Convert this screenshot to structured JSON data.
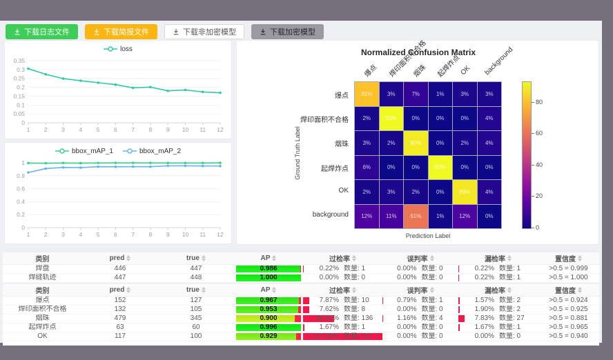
{
  "toolbar": {
    "buttons": [
      {
        "id": "download-log",
        "label": "下载日志文件",
        "variant": "green"
      },
      {
        "id": "download-brief",
        "label": "下载简报文件",
        "variant": "orange"
      },
      {
        "id": "download-unencrypted-model",
        "label": "下载非加密模型",
        "variant": "white"
      },
      {
        "id": "download-encrypted-model",
        "label": "下载加密模型",
        "variant": "gray"
      }
    ]
  },
  "chart_data": [
    {
      "type": "line",
      "title": "",
      "x": [
        1,
        2,
        3,
        4,
        5,
        6,
        7,
        8,
        9,
        10,
        11,
        12
      ],
      "series": [
        {
          "name": "loss",
          "color": "#2fc9a2",
          "values": [
            0.305,
            0.273,
            0.249,
            0.237,
            0.226,
            0.215,
            0.197,
            0.201,
            0.18,
            0.185,
            0.174,
            0.169
          ]
        }
      ],
      "ylim": [
        0,
        0.35
      ],
      "yticks": [
        0,
        0.05,
        0.1,
        0.15,
        0.2,
        0.25,
        0.3,
        0.35
      ],
      "grid": true,
      "legend_position": "top"
    },
    {
      "type": "line",
      "title": "",
      "x": [
        1,
        2,
        3,
        4,
        5,
        6,
        7,
        8,
        9,
        10,
        11,
        12
      ],
      "series": [
        {
          "name": "bbox_mAP_1",
          "color": "#38cf8f",
          "values": [
            0.995,
            0.993,
            0.997,
            0.994,
            0.997,
            0.998,
            0.998,
            0.998,
            0.997,
            0.997,
            0.997,
            0.998
          ]
        },
        {
          "name": "bbox_mAP_2",
          "color": "#66b3f0",
          "values": [
            0.85,
            0.91,
            0.928,
            0.925,
            0.94,
            0.938,
            0.94,
            0.94,
            0.952,
            0.953,
            0.95,
            0.95
          ]
        }
      ],
      "ylim": [
        0,
        1
      ],
      "yticks": [
        0,
        0.2,
        0.4,
        0.6,
        0.8,
        1
      ],
      "grid": true,
      "legend_position": "top"
    },
    {
      "type": "heatmap",
      "title": "Normalized Confusion Matrix",
      "xlabel": "Prediction Label",
      "ylabel": "Ground Truth Label",
      "labels": [
        "爆点",
        "焊印面积不合格",
        "烟珠",
        "起焊炸点",
        "OK",
        "background"
      ],
      "values": [
        [
          81,
          3,
          7,
          1,
          3,
          3
        ],
        [
          2,
          93,
          0,
          0,
          0,
          4
        ],
        [
          3,
          2,
          90,
          0,
          2,
          4
        ],
        [
          6,
          0,
          0,
          93,
          0,
          0
        ],
        [
          2,
          3,
          2,
          0,
          89,
          4
        ],
        [
          12,
          11,
          61,
          1,
          12,
          0
        ]
      ],
      "unit": "%",
      "vmax": 93,
      "colorbar_ticks": [
        0,
        20,
        40,
        60,
        80
      ],
      "colormap": "plasma"
    }
  ],
  "tables": {
    "count_label": "数量:",
    "headers": [
      {
        "key": "class",
        "label": "类别",
        "sortable": false
      },
      {
        "key": "pred",
        "label": "pred",
        "sortable": true
      },
      {
        "key": "true",
        "label": "true",
        "sortable": true
      },
      {
        "key": "ap",
        "label": "AP",
        "sortable": true
      },
      {
        "key": "over",
        "label": "过检率",
        "sortable": true
      },
      {
        "key": "mis",
        "label": "误判率",
        "sortable": true
      },
      {
        "key": "miss",
        "label": "漏检率",
        "sortable": true
      },
      {
        "key": "conf",
        "label": "置信度",
        "sortable": true
      }
    ],
    "tables": [
      {
        "rows": [
          {
            "class": "焊盘",
            "pred": 446,
            "true": 447,
            "ap": "0.986",
            "over": {
              "pct": "0.22%",
              "count": 1
            },
            "mis": {
              "pct": "0.00%",
              "count": 0
            },
            "miss": {
              "pct": "0.22%",
              "count": 1
            },
            "conf": ">0.5 = 0.999"
          },
          {
            "class": "焊缝轨迹",
            "pred": 447,
            "true": 448,
            "ap": "1.000",
            "over": {
              "pct": "0.00%",
              "count": 0
            },
            "mis": {
              "pct": "0.00%",
              "count": 0
            },
            "miss": {
              "pct": "0.22%",
              "count": 1
            },
            "conf": ">0.5 = 1.000"
          }
        ]
      },
      {
        "rows": [
          {
            "class": "爆点",
            "pred": 152,
            "true": 127,
            "ap": "0.967",
            "over": {
              "pct": "7.87%",
              "count": 10
            },
            "mis": {
              "pct": "0.79%",
              "count": 1
            },
            "miss": {
              "pct": "1.57%",
              "count": 2
            },
            "conf": ">0.5 = 0.924"
          },
          {
            "class": "焊印面积不合格",
            "pred": 132,
            "true": 105,
            "ap": "0.953",
            "over": {
              "pct": "7.62%",
              "count": 8
            },
            "mis": {
              "pct": "0.00%",
              "count": 0
            },
            "miss": {
              "pct": "1.90%",
              "count": 2
            },
            "conf": ">0.5 = 0.925"
          },
          {
            "class": "烟珠",
            "pred": 479,
            "true": 345,
            "ap": "0.900",
            "over": {
              "pct": "39.42%",
              "count": 136
            },
            "mis": {
              "pct": "1.16%",
              "count": 4
            },
            "miss": {
              "pct": "7.83%",
              "count": 27
            },
            "conf": ">0.5 = 0.881"
          },
          {
            "class": "起焊炸点",
            "pred": 63,
            "true": 60,
            "ap": "0.996",
            "over": {
              "pct": "1.67%",
              "count": 1
            },
            "mis": {
              "pct": "0.00%",
              "count": 0
            },
            "miss": {
              "pct": "1.67%",
              "count": 1
            },
            "conf": ">0.5 = 0.965"
          },
          {
            "class": "OK",
            "pred": 117,
            "true": 100,
            "ap": "0.929",
            "over": {
              "pct": "117.00%",
              "count": 117
            },
            "mis": {
              "pct": "0.00%",
              "count": 0
            },
            "miss": {
              "pct": "0.00%",
              "count": 0
            },
            "conf": ">0.5 = 0.940"
          }
        ]
      }
    ]
  }
}
